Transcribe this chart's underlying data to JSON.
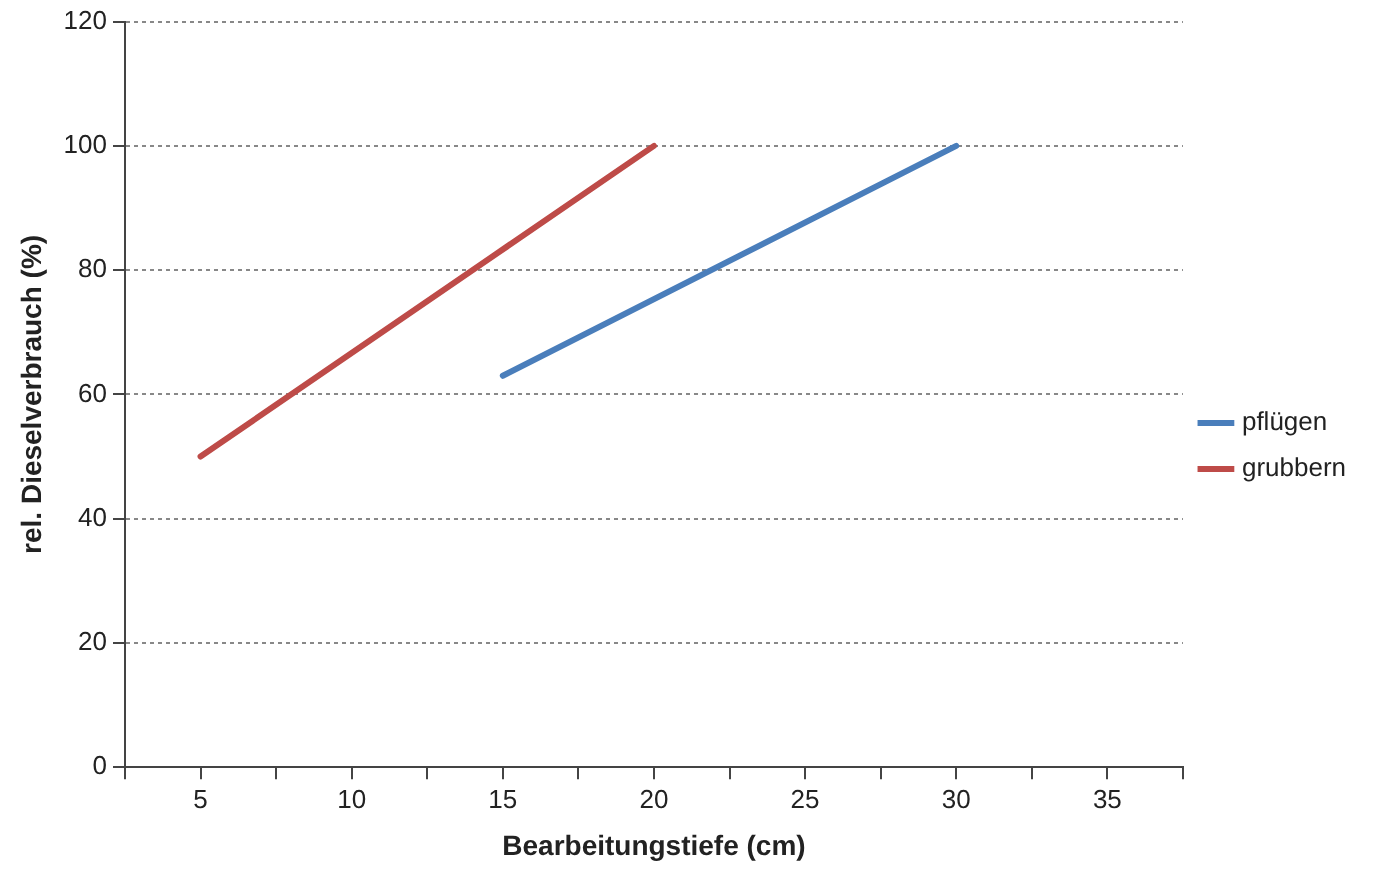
{
  "chart_data": {
    "type": "line",
    "xlabel": "Bearbeitungstiefe (cm)",
    "ylabel": "rel. Dieselverbrauch (%)",
    "series": [
      {
        "name": "pflügen",
        "color": "#4a7ebb",
        "x": [
          15,
          30
        ],
        "values": [
          63,
          100
        ]
      },
      {
        "name": "grubbern",
        "color": "#be4b48",
        "x": [
          5,
          20
        ],
        "values": [
          50,
          100
        ]
      }
    ],
    "xlim": [
      2.5,
      37.5
    ],
    "xticks": [
      {
        "value": 2.5,
        "label": null
      },
      5,
      {
        "value": 7.5,
        "label": null
      },
      10,
      {
        "value": 12.5,
        "label": null
      },
      15,
      {
        "value": 17.5,
        "label": null
      },
      20,
      {
        "value": 22.5,
        "label": null
      },
      25,
      {
        "value": 27.5,
        "label": null
      },
      30,
      {
        "value": 32.5,
        "label": null
      },
      35,
      {
        "value": 37.5,
        "label": null
      }
    ],
    "ylim": [
      0,
      120
    ],
    "yticks": [
      0,
      20,
      40,
      60,
      80,
      100,
      120
    ],
    "grid": "y",
    "legend": "right",
    "marker": "none"
  }
}
